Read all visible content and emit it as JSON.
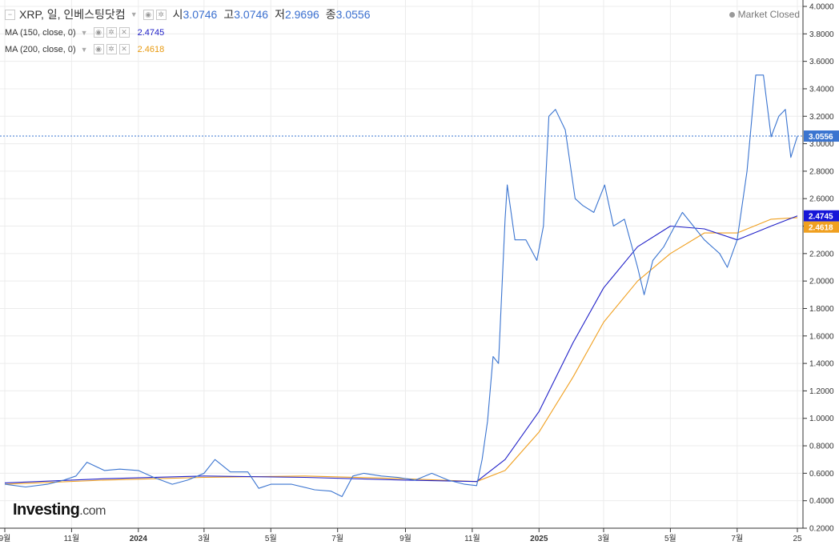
{
  "header": {
    "title": "XRP, 일, 인베스팅닷컴",
    "open_label": "시",
    "open_value": "3.0746",
    "high_label": "고",
    "high_value": "3.0746",
    "low_label": "저",
    "low_value": "2.9696",
    "close_label": "종",
    "close_value": "3.0556",
    "market_status": "Market Closed"
  },
  "indicators": [
    {
      "label": "MA (150, close, 0)",
      "value": "2.4745",
      "color": "#2020c8"
    },
    {
      "label": "MA (200, close, 0)",
      "value": "2.4618",
      "color": "#f0a020"
    }
  ],
  "logo": {
    "brand": "Investing",
    "suffix": ".com"
  },
  "chart_data": {
    "type": "line",
    "ylim": [
      0.2,
      4.0
    ],
    "y_ticks": [
      "4.0000",
      "3.8000",
      "3.6000",
      "3.4000",
      "3.2000",
      "3.0000",
      "2.8000",
      "2.6000",
      "2.4000",
      "2.2000",
      "2.0000",
      "1.8000",
      "1.6000",
      "1.4000",
      "1.2000",
      "1.0000",
      "0.8000",
      "0.6000",
      "0.4000",
      "0.2000"
    ],
    "x_ticks": [
      "9월",
      "11월",
      "2024",
      "3월",
      "5월",
      "7월",
      "9월",
      "11월",
      "2025",
      "3월",
      "5월",
      "7월",
      "25"
    ],
    "x_tick_dates": [
      "2023-09-01",
      "2023-11-01",
      "2024-01-01",
      "2024-03-01",
      "2024-05-01",
      "2024-07-01",
      "2024-09-01",
      "2024-11-01",
      "2025-01-01",
      "2025-03-01",
      "2025-05-01",
      "2025-07-01",
      "2025-08-25"
    ],
    "x_range": [
      "2023-09-01",
      "2025-08-25"
    ],
    "last_price": 3.0556,
    "series": [
      {
        "name": "XRP",
        "color": "#3a74d0",
        "x": [
          "2023-09-01",
          "2023-09-20",
          "2023-10-10",
          "2023-10-25",
          "2023-11-05",
          "2023-11-15",
          "2023-12-01",
          "2023-12-15",
          "2024-01-01",
          "2024-01-15",
          "2024-02-01",
          "2024-02-15",
          "2024-03-01",
          "2024-03-11",
          "2024-03-25",
          "2024-04-10",
          "2024-04-20",
          "2024-05-01",
          "2024-05-20",
          "2024-06-10",
          "2024-06-25",
          "2024-07-05",
          "2024-07-15",
          "2024-07-25",
          "2024-08-10",
          "2024-08-25",
          "2024-09-10",
          "2024-09-25",
          "2024-10-10",
          "2024-10-25",
          "2024-11-05",
          "2024-11-10",
          "2024-11-15",
          "2024-11-20",
          "2024-11-25",
          "2024-12-01",
          "2024-12-03",
          "2024-12-10",
          "2024-12-20",
          "2024-12-30",
          "2025-01-05",
          "2025-01-10",
          "2025-01-16",
          "2025-01-25",
          "2025-02-03",
          "2025-02-10",
          "2025-02-20",
          "2025-03-02",
          "2025-03-10",
          "2025-03-20",
          "2025-04-01",
          "2025-04-07",
          "2025-04-15",
          "2025-04-25",
          "2025-05-05",
          "2025-05-12",
          "2025-05-20",
          "2025-06-01",
          "2025-06-15",
          "2025-06-22",
          "2025-07-01",
          "2025-07-10",
          "2025-07-18",
          "2025-07-25",
          "2025-08-01",
          "2025-08-08",
          "2025-08-14",
          "2025-08-19",
          "2025-08-25"
        ],
        "values": [
          0.52,
          0.5,
          0.52,
          0.55,
          0.58,
          0.68,
          0.62,
          0.63,
          0.62,
          0.57,
          0.52,
          0.55,
          0.6,
          0.7,
          0.61,
          0.61,
          0.49,
          0.52,
          0.52,
          0.48,
          0.47,
          0.43,
          0.58,
          0.6,
          0.58,
          0.57,
          0.55,
          0.6,
          0.55,
          0.52,
          0.51,
          0.7,
          0.98,
          1.45,
          1.4,
          2.45,
          2.7,
          2.3,
          2.3,
          2.15,
          2.4,
          3.2,
          3.25,
          3.1,
          2.6,
          2.55,
          2.5,
          2.7,
          2.4,
          2.45,
          2.1,
          1.9,
          2.15,
          2.25,
          2.4,
          2.5,
          2.42,
          2.3,
          2.2,
          2.1,
          2.3,
          2.8,
          3.5,
          3.5,
          3.05,
          3.2,
          3.25,
          2.9,
          3.0556
        ]
      },
      {
        "name": "MA (150, close, 0)",
        "color": "#2020c8",
        "x": [
          "2023-09-01",
          "2023-12-01",
          "2024-03-01",
          "2024-06-01",
          "2024-09-01",
          "2024-11-05",
          "2024-12-01",
          "2025-01-01",
          "2025-02-01",
          "2025-03-01",
          "2025-04-01",
          "2025-05-01",
          "2025-06-01",
          "2025-07-01",
          "2025-08-01",
          "2025-08-25"
        ],
        "values": [
          0.53,
          0.56,
          0.58,
          0.57,
          0.55,
          0.54,
          0.7,
          1.05,
          1.55,
          1.95,
          2.25,
          2.4,
          2.38,
          2.3,
          2.4,
          2.4745
        ]
      },
      {
        "name": "MA (200, close, 0)",
        "color": "#f0a020",
        "x": [
          "2023-09-01",
          "2023-12-01",
          "2024-03-01",
          "2024-06-01",
          "2024-09-01",
          "2024-11-05",
          "2024-12-01",
          "2025-01-01",
          "2025-02-01",
          "2025-03-01",
          "2025-04-01",
          "2025-05-01",
          "2025-06-01",
          "2025-07-01",
          "2025-08-01",
          "2025-08-25"
        ],
        "values": [
          0.52,
          0.55,
          0.57,
          0.58,
          0.56,
          0.54,
          0.62,
          0.9,
          1.3,
          1.7,
          2.0,
          2.2,
          2.35,
          2.35,
          2.45,
          2.4618
        ]
      }
    ]
  }
}
